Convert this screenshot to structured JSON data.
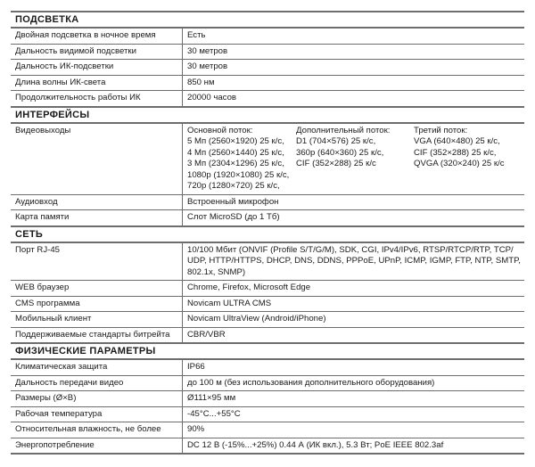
{
  "sections": [
    {
      "title": "ПОДСВЕТКА",
      "rows": [
        {
          "label": "Двойная подсветка в ночное время",
          "value": "Есть"
        },
        {
          "label": "Дальность видимой подсветки",
          "value": "30 метров"
        },
        {
          "label": "Дальность ИК-подсветки",
          "value": "30 метров"
        },
        {
          "label": "Длина волны ИК-света",
          "value": "850 нм"
        },
        {
          "label": "Продолжительность работы ИК",
          "value": "20000 часов"
        }
      ]
    },
    {
      "title": "ИНТЕРФЕЙСЫ",
      "rows": [
        {
          "label": "Видеовыходы",
          "columns": [
            [
              "Основной поток:",
              "5 Мп (2560×1920) 25 к/с,",
              "4 Мп (2560×1440) 25 к/с,",
              "3 Мп (2304×1296) 25 к/с,",
              "1080p (1920×1080) 25 к/с,",
              "720p (1280×720) 25 к/с,"
            ],
            [
              "Дополнительный поток:",
              "D1 (704×576) 25 к/с,",
              "360p (640×360) 25 к/с,",
              "CIF (352×288) 25 к/с"
            ],
            [
              "Третий поток:",
              "VGA (640×480) 25 к/с,",
              "CIF (352×288) 25 к/с,",
              "QVGA (320×240) 25 к/с"
            ]
          ]
        },
        {
          "label": "Аудиовход",
          "value": "Встроенный микрофон"
        },
        {
          "label": "Карта памяти",
          "value": "Слот MicroSD (до 1 Тб)"
        }
      ]
    },
    {
      "title": "СЕТЬ",
      "rows": [
        {
          "label": "Порт RJ-45",
          "lines": [
            "10/100 Мбит (ONVIF (Profile S/T/G/M), SDK, CGI, IPv4/IPv6, RTSP/RTCP/RTP, TCP/",
            "UDP, HTTP/HTTPS, DHCP, DNS, DDNS, PPPoE, UPnP, ICMP, IGMP, FTP, NTP, SMTP,",
            "802.1x, SNMP)"
          ]
        },
        {
          "label": "WEB браузер",
          "value": "Chrome, Firefox, Microsoft Edge"
        },
        {
          "label": "CMS программа",
          "value": "Novicam ULTRA CMS"
        },
        {
          "label": "Мобильный клиент",
          "value": "Novicam UltraView (Android/iPhone)"
        },
        {
          "label": "Поддерживаемые стандарты битрейта",
          "value": "CBR/VBR"
        }
      ]
    },
    {
      "title": "ФИЗИЧЕСКИЕ ПАРАМЕТРЫ",
      "rows": [
        {
          "label": "Климатическая защита",
          "value": "IP66"
        },
        {
          "label": "Дальность передачи видео",
          "value": "до 100 м (без использования дополнительного оборудования)"
        },
        {
          "label": "Размеры (Ø×В)",
          "value": "Ø111×95 мм"
        },
        {
          "label": "Рабочая температура",
          "value": "-45°C...+55°C"
        },
        {
          "label": "Относительная влажность, не более",
          "value": "90%"
        },
        {
          "label": "Энергопотребление",
          "value": "DC 12 В (-15%...+25%)  0.44 А (ИК вкл.), 5.3 Вт; PoE IEEE 802.3af"
        }
      ]
    }
  ]
}
